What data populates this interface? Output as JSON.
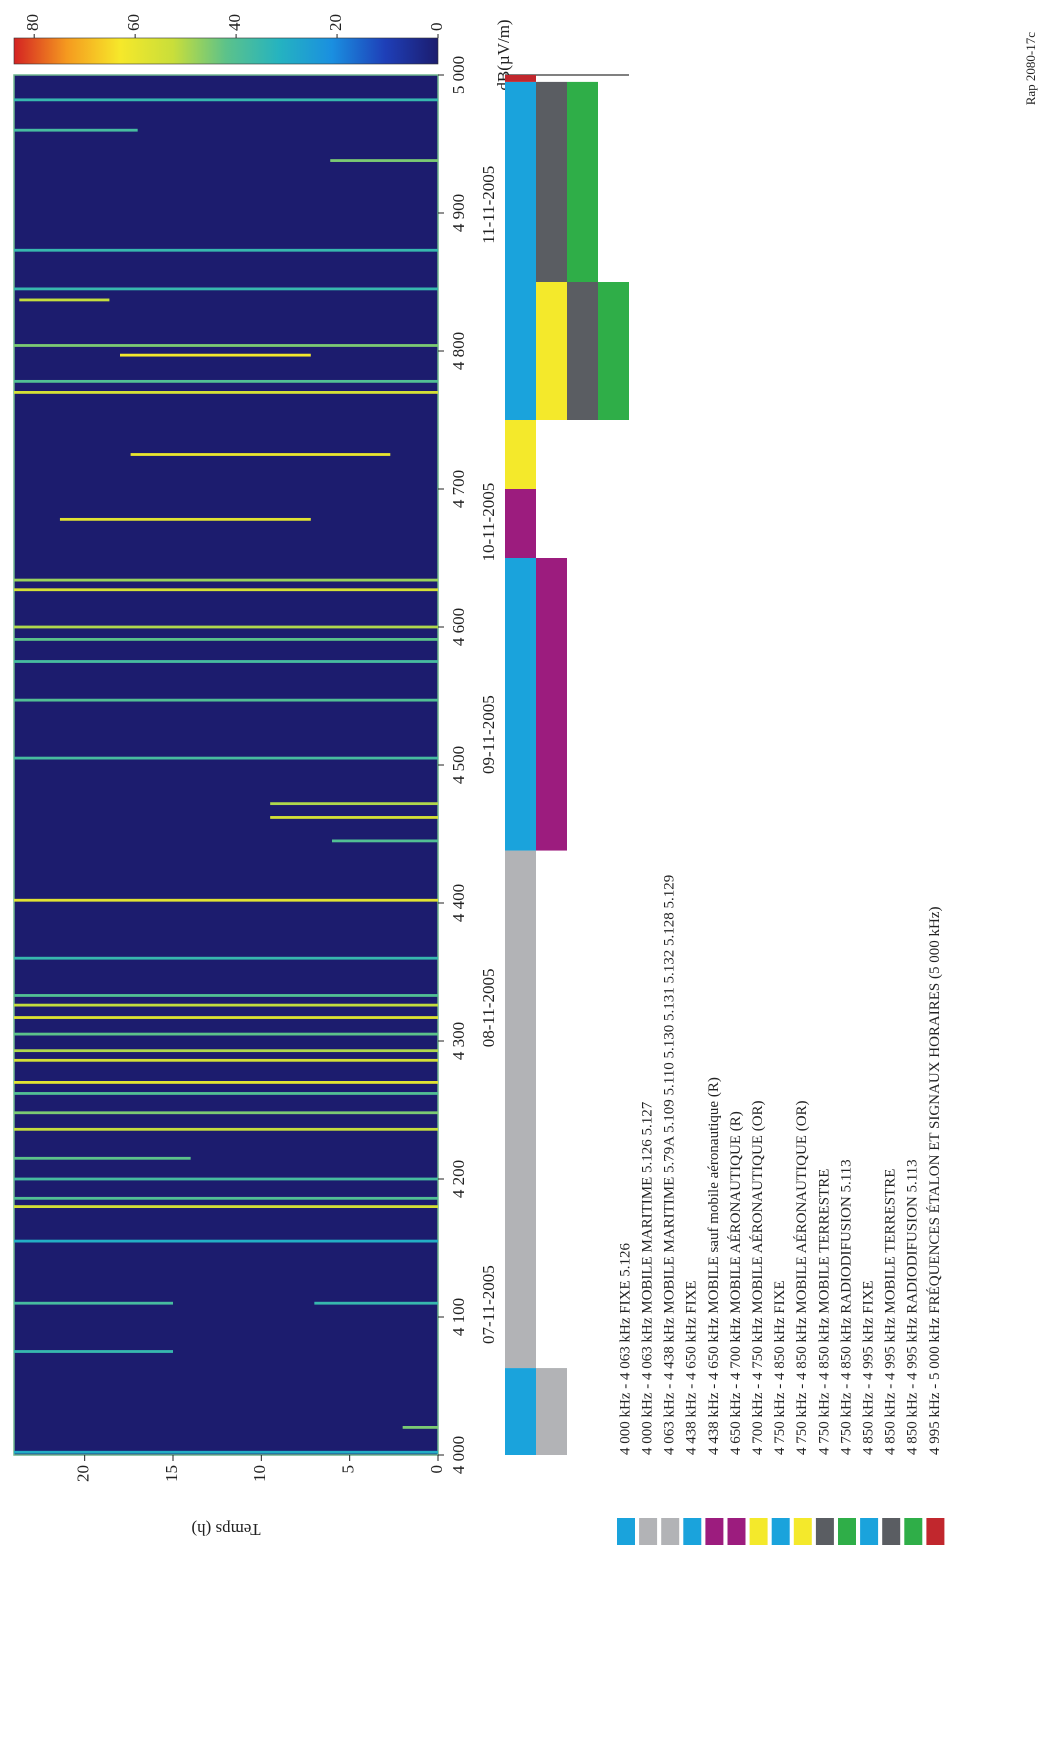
{
  "chart_data": {
    "type": "spectrogram",
    "xlabel_unit_note": "dB(µV/m)",
    "ylabel": "Temps (h)",
    "figure_ref": "Rap 2080-17c",
    "xlim": [
      4000,
      5000
    ],
    "xticks": [
      {
        "value": 4000,
        "label": "4 000"
      },
      {
        "value": 4100,
        "label": "4 100"
      },
      {
        "value": 4200,
        "label": "4 200"
      },
      {
        "value": 4300,
        "label": "4 300"
      },
      {
        "value": 4400,
        "label": "4 400"
      },
      {
        "value": 4500,
        "label": "4 500"
      },
      {
        "value": 4600,
        "label": "4 600"
      },
      {
        "value": 4700,
        "label": "4 700"
      },
      {
        "value": 4800,
        "label": "4 800"
      },
      {
        "value": 4900,
        "label": "4 900"
      },
      {
        "value": 5000,
        "label": "5 000"
      }
    ],
    "ylim": [
      0,
      24
    ],
    "yticks": [
      0,
      5,
      10,
      15,
      20
    ],
    "zlim": [
      0,
      84
    ],
    "zticks": [
      0,
      20,
      40,
      60,
      80
    ],
    "colormap": [
      "#1c1c6e",
      "#1e3fb8",
      "#1a8fe0",
      "#25b3c0",
      "#5cc28a",
      "#c9de3a",
      "#f6e82a",
      "#f59a1f",
      "#d42323"
    ],
    "dates": [
      {
        "label": "07-11-2005",
        "x": 4109
      },
      {
        "label": "08-11-2005",
        "x": 4324
      },
      {
        "label": "09-11-2005",
        "x": 4522
      },
      {
        "label": "10-11-2005",
        "x": 4676
      },
      {
        "label": "11-11-2005",
        "x": 4906
      }
    ],
    "allocations": [
      {
        "label": "4 000 kHz - 4 063 kHz FIXE 5.126",
        "from": 4000,
        "to": 4063,
        "color": "#1aa3dc"
      },
      {
        "label": "4 000 kHz - 4 063 kHz MOBILE MARITIME 5.126 5.127",
        "from": 4000,
        "to": 4063,
        "color": "#b2b3b6"
      },
      {
        "label": "4 063 kHz - 4 438 kHz MOBILE MARITIME 5.79A 5.109 5.110 5.130 5.131 5.132 5.128 5.129",
        "from": 4063,
        "to": 4438,
        "color": "#b2b3b6"
      },
      {
        "label": "4 438 kHz - 4 650 kHz FIXE",
        "from": 4438,
        "to": 4650,
        "color": "#1aa3dc"
      },
      {
        "label": "4 438 kHz - 4 650 kHz MOBILE sauf mobile aéronautique (R)",
        "from": 4438,
        "to": 4650,
        "color": "#9c1c7e"
      },
      {
        "label": "4 650 kHz - 4 700 kHz MOBILE AÉRONAUTIQUE (R)",
        "from": 4650,
        "to": 4700,
        "color": "#9c1c7e"
      },
      {
        "label": "4 700 kHz - 4 750 kHz MOBILE AÉRONAUTIQUE (OR)",
        "from": 4700,
        "to": 4750,
        "color": "#f4e92b"
      },
      {
        "label": "4 750 kHz - 4 850 kHz FIXE",
        "from": 4750,
        "to": 4850,
        "color": "#1aa3dc"
      },
      {
        "label": "4 750 kHz - 4 850 kHz MOBILE AÉRONAUTIQUE (OR)",
        "from": 4750,
        "to": 4850,
        "color": "#f4e92b"
      },
      {
        "label": "4 750 kHz - 4 850 kHz MOBILE TERRESTRE",
        "from": 4750,
        "to": 4850,
        "color": "#5a5d62"
      },
      {
        "label": "4 750 kHz - 4 850 kHz RADIODIFUSION 5.113",
        "from": 4750,
        "to": 4850,
        "color": "#2fae48"
      },
      {
        "label": "4 850 kHz - 4 995 kHz FIXE",
        "from": 4850,
        "to": 4995,
        "color": "#1aa3dc"
      },
      {
        "label": "4 850 kHz - 4 995 kHz MOBILE TERRESTRE",
        "from": 4850,
        "to": 4995,
        "color": "#5a5d62"
      },
      {
        "label": "4 850 kHz - 4 995 kHz RADIODIFUSION 5.113",
        "from": 4850,
        "to": 4995,
        "color": "#2fae48"
      },
      {
        "label": "4 995 kHz - 5 000 kHz FRÉQUENCES ÉTALON ET SIGNAUX HORAIRES (5 000 kHz)",
        "from": 4995,
        "to": 5000,
        "color": "#c1272d"
      }
    ],
    "signals": [
      {
        "f": 4002,
        "t0": 0,
        "t1": 24,
        "level": 30
      },
      {
        "f": 4020,
        "t0": 0,
        "t1": 2,
        "level": 45
      },
      {
        "f": 4075,
        "t0": 15,
        "t1": 24,
        "level": 35
      },
      {
        "f": 4110,
        "t0": 15,
        "t1": 24,
        "level": 38
      },
      {
        "f": 4110,
        "t0": 0,
        "t1": 7,
        "level": 35
      },
      {
        "f": 4155,
        "t0": 0,
        "t1": 24,
        "level": 30
      },
      {
        "f": 4180,
        "t0": 0,
        "t1": 24,
        "level": 55
      },
      {
        "f": 4186,
        "t0": 0,
        "t1": 24,
        "level": 40
      },
      {
        "f": 4200,
        "t0": 0,
        "t1": 24,
        "level": 38
      },
      {
        "f": 4215,
        "t0": 14,
        "t1": 24,
        "level": 42
      },
      {
        "f": 4236,
        "t0": 0,
        "t1": 24,
        "level": 52
      },
      {
        "f": 4248,
        "t0": 0,
        "t1": 24,
        "level": 45
      },
      {
        "f": 4262,
        "t0": 0,
        "t1": 24,
        "level": 40
      },
      {
        "f": 4270,
        "t0": 0,
        "t1": 24,
        "level": 58
      },
      {
        "f": 4286,
        "t0": 0,
        "t1": 24,
        "level": 55
      },
      {
        "f": 4293,
        "t0": 0,
        "t1": 24,
        "level": 50
      },
      {
        "f": 4305,
        "t0": 0,
        "t1": 24,
        "level": 42
      },
      {
        "f": 4317,
        "t0": 0,
        "t1": 24,
        "level": 57
      },
      {
        "f": 4326,
        "t0": 0,
        "t1": 24,
        "level": 52
      },
      {
        "f": 4333,
        "t0": 0,
        "t1": 24,
        "level": 40
      },
      {
        "f": 4360,
        "t0": 0,
        "t1": 24,
        "level": 35
      },
      {
        "f": 4402,
        "t0": 0,
        "t1": 24,
        "level": 58
      },
      {
        "f": 4445,
        "t0": 0,
        "t1": 6,
        "level": 40
      },
      {
        "f": 4462,
        "t0": 0,
        "t1": 9.5,
        "level": 55
      },
      {
        "f": 4472,
        "t0": 0,
        "t1": 9.5,
        "level": 50
      },
      {
        "f": 4505,
        "t0": 0,
        "t1": 24,
        "level": 38
      },
      {
        "f": 4547,
        "t0": 0,
        "t1": 24,
        "level": 40
      },
      {
        "f": 4575,
        "t0": 0,
        "t1": 24,
        "level": 38
      },
      {
        "f": 4591,
        "t0": 0,
        "t1": 24,
        "level": 42
      },
      {
        "f": 4600,
        "t0": 0,
        "t1": 24,
        "level": 50
      },
      {
        "f": 4627,
        "t0": 0,
        "t1": 24,
        "level": 55
      },
      {
        "f": 4634,
        "t0": 0,
        "t1": 24,
        "level": 48
      },
      {
        "f": 4678,
        "t0": 7.2,
        "t1": 21.4,
        "level": 58
      },
      {
        "f": 4725,
        "t0": 2.7,
        "t1": 17.4,
        "level": 60
      },
      {
        "f": 4770,
        "t0": 0,
        "t1": 24,
        "level": 55
      },
      {
        "f": 4778,
        "t0": 0,
        "t1": 24,
        "level": 40
      },
      {
        "f": 4797,
        "t0": 7.2,
        "t1": 18,
        "level": 62
      },
      {
        "f": 4804,
        "t0": 0,
        "t1": 24,
        "level": 45
      },
      {
        "f": 4837,
        "t0": 18.6,
        "t1": 23.7,
        "level": 52
      },
      {
        "f": 4845,
        "t0": 0,
        "t1": 24,
        "level": 35
      },
      {
        "f": 4873,
        "t0": 0,
        "t1": 24,
        "level": 35
      },
      {
        "f": 4938,
        "t0": 0,
        "t1": 6.1,
        "level": 45
      },
      {
        "f": 4960,
        "t0": 17,
        "t1": 24,
        "level": 38
      },
      {
        "f": 4982,
        "t0": 0,
        "t1": 24,
        "level": 35
      }
    ]
  }
}
